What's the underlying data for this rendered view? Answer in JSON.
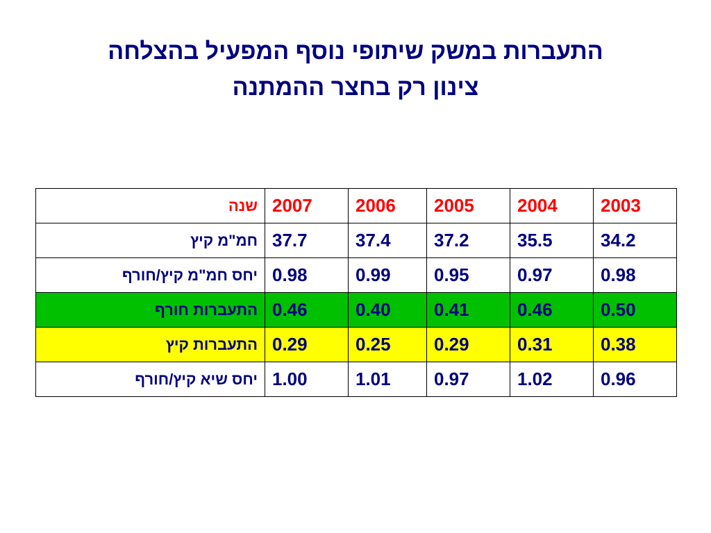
{
  "title": {
    "line1": "התעברות במשק שיתופי נוסף המפעיל בהצלחה",
    "line2": "צינון רק בחצר ההמתנה"
  },
  "colors": {
    "text": "#000080",
    "header_text": "#ff0000",
    "green_row": "#00c000",
    "yellow_row": "#ffff00"
  },
  "table": {
    "header": {
      "label": "שנה",
      "years": [
        "2003",
        "2004",
        "2005",
        "2006",
        "2007"
      ]
    },
    "rows": [
      {
        "label": "חמ\"מ קיץ",
        "values": [
          "34.2",
          "35.5",
          "37.2",
          "37.4",
          "37.7"
        ],
        "highlight": ""
      },
      {
        "label": "יחס חמ\"מ קיץ/חורף",
        "values": [
          "0.98",
          "0.97",
          "0.95",
          "0.99",
          "0.98"
        ],
        "highlight": ""
      },
      {
        "label": "התעברות חורף",
        "values": [
          "0.50",
          "0.46",
          "0.41",
          "0.40",
          "0.46"
        ],
        "highlight": "green"
      },
      {
        "label": "התעברות קיץ",
        "values": [
          "0.38",
          "0.31",
          "0.29",
          "0.25",
          "0.29"
        ],
        "highlight": "yellow"
      },
      {
        "label": "יחס שיא קיץ/חורף",
        "values": [
          "0.96",
          "1.02",
          "0.97",
          "1.01",
          "1.00"
        ],
        "highlight": ""
      }
    ]
  }
}
